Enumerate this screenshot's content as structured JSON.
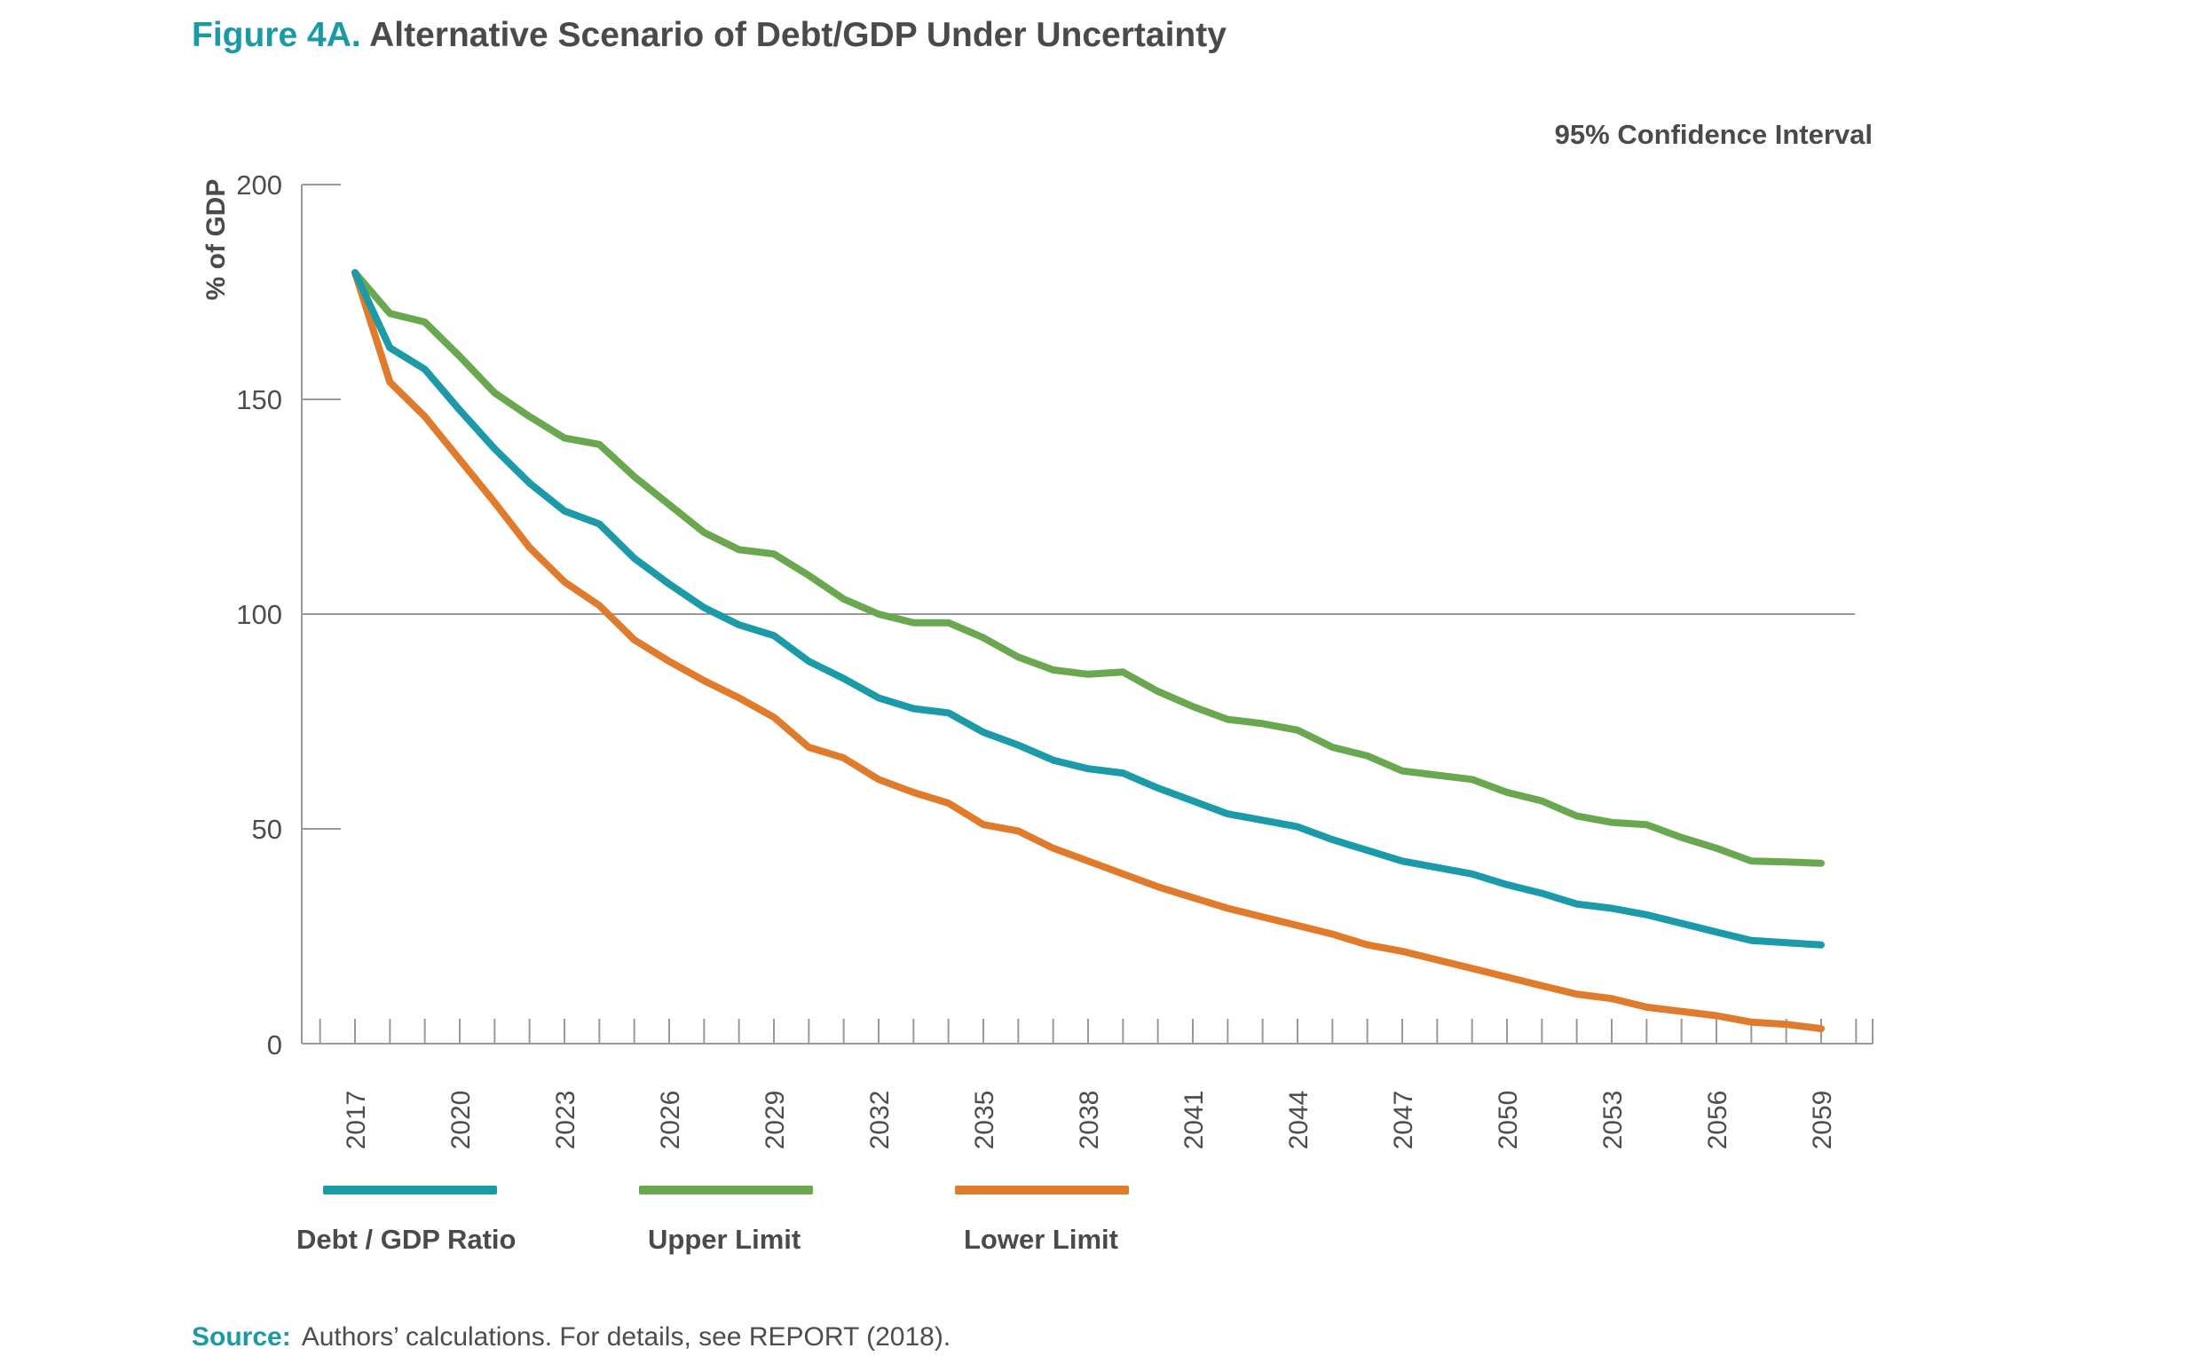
{
  "header": {
    "figure_label": "Figure 4A.",
    "figure_title": "Alternative Scenario of Debt/GDP Under Uncertainty",
    "ci_note": "95% Confidence Interval"
  },
  "footer": {
    "source_label": "Source:",
    "source_text": "Authors’ calculations. For details, see REPORT (2018)."
  },
  "colors": {
    "debt": "#1b9aa8",
    "upper": "#6aa84f",
    "lower": "#e07b2c",
    "axis": "#999999",
    "text": "#4d4d4f",
    "accent": "#1a9aa5"
  },
  "chart_data": {
    "type": "line",
    "ylabel": "% of GDP",
    "xlabel": "",
    "ylim": [
      0,
      200
    ],
    "yticks": [
      0,
      50,
      100,
      150,
      200
    ],
    "xlim": [
      2017,
      2059
    ],
    "xticks": [
      2017,
      2020,
      2023,
      2026,
      2029,
      2032,
      2035,
      2038,
      2041,
      2044,
      2047,
      2050,
      2053,
      2056,
      2059
    ],
    "reference_line": 100,
    "grid": false,
    "legend_position": "bottom",
    "x": [
      2017,
      2018,
      2019,
      2020,
      2021,
      2022,
      2023,
      2024,
      2025,
      2026,
      2027,
      2028,
      2029,
      2030,
      2031,
      2032,
      2033,
      2034,
      2035,
      2036,
      2037,
      2038,
      2039,
      2040,
      2041,
      2042,
      2043,
      2044,
      2045,
      2046,
      2047,
      2048,
      2049,
      2050,
      2051,
      2052,
      2053,
      2054,
      2055,
      2056,
      2057,
      2058,
      2059
    ],
    "series": [
      {
        "name": "Debt / GDP Ratio",
        "color_key": "debt",
        "values": [
          179.5,
          162,
          157,
          147.5,
          138.5,
          130.5,
          124,
          121,
          113,
          107,
          101.5,
          97.5,
          95,
          89,
          85,
          80.5,
          78,
          77,
          72.5,
          69.5,
          66,
          64,
          63,
          59.5,
          56.5,
          53.5,
          52,
          50.5,
          47.5,
          45,
          42.5,
          41,
          39.5,
          37,
          35,
          32.5,
          31.5,
          30,
          28,
          26,
          24,
          23.5,
          23
        ]
      },
      {
        "name": "Upper Limit",
        "color_key": "upper",
        "values": [
          179.5,
          170,
          168,
          160,
          151.5,
          146,
          141,
          139.5,
          132,
          125.5,
          119,
          115,
          114,
          109,
          103.5,
          100,
          98,
          98,
          94.5,
          90,
          87,
          86,
          86.5,
          82,
          78.5,
          75.5,
          74.5,
          73,
          69,
          67,
          63.5,
          62.5,
          61.5,
          58.5,
          56.5,
          53,
          51.5,
          51,
          48,
          45.5,
          42.5,
          42.3,
          42
        ]
      },
      {
        "name": "Lower Limit",
        "color_key": "lower",
        "values": [
          179.5,
          154,
          146,
          136,
          126,
          115.5,
          107.5,
          102,
          94,
          89,
          84.5,
          80.5,
          76,
          69,
          66.5,
          61.5,
          58.5,
          56,
          51,
          49.5,
          45.5,
          42.5,
          39.5,
          36.5,
          34,
          31.5,
          29.5,
          27.5,
          25.5,
          23,
          21.5,
          19.5,
          17.5,
          15.5,
          13.5,
          11.5,
          10.5,
          8.5,
          7.5,
          6.5,
          5,
          4.5,
          3.5
        ]
      }
    ]
  }
}
